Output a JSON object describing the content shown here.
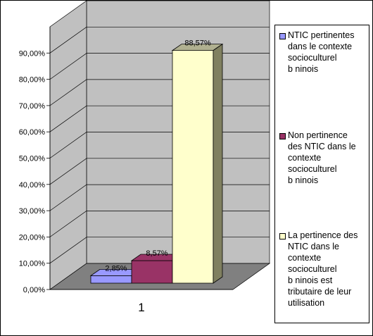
{
  "chart_data": {
    "type": "bar",
    "categories": [
      "1"
    ],
    "series": [
      {
        "name": "NTIC pertinentes\ndans le contexte\nsocioculturel\nb  ninois",
        "value": 2.85,
        "label": "2,85%",
        "color": "#9999ff"
      },
      {
        "name": "Non pertinence\ndes NTIC dans le\ncontexte\nsocioculturel\nb  ninois",
        "value": 8.57,
        "label": "8,57%",
        "color": "#993366"
      },
      {
        "name": "La pertinence des\nNTIC dans le\ncontexte\nsocioculturel\nb  ninois est\ntributaire de leur\nutilisation",
        "value": 88.57,
        "label": "88,57%",
        "color": "#ffffcc"
      }
    ],
    "yticks": [
      "0,00%",
      "10,00%",
      "20,00%",
      "30,00%",
      "40,00%",
      "50,00%",
      "60,00%",
      "70,00%",
      "80,00%",
      "90,00%"
    ],
    "ylim": [
      0,
      100
    ],
    "grid": true,
    "legend_position": "right",
    "three_d": true,
    "colors": {
      "wall": "#c0c0c0",
      "floor": "#808080",
      "bar_side": "#808060",
      "bar_top": "#b0b090"
    }
  }
}
